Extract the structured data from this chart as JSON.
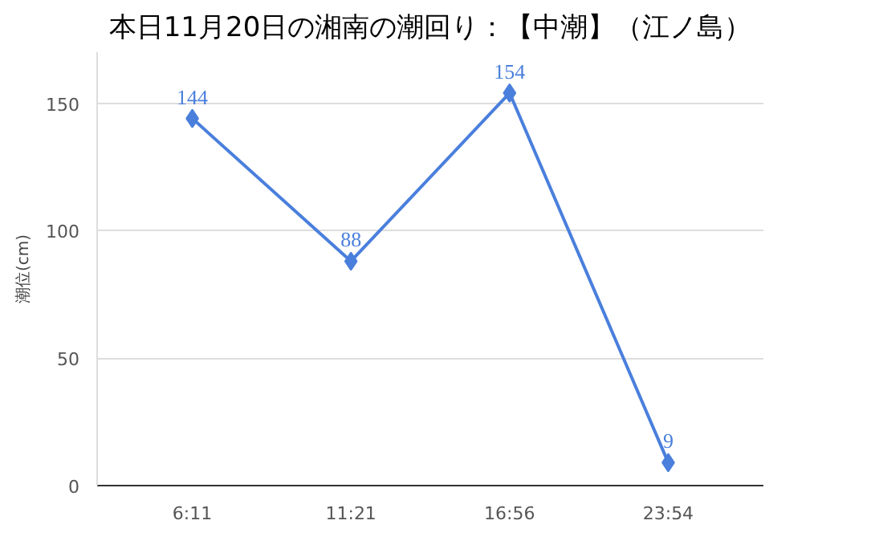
{
  "chart_data": {
    "type": "line",
    "title": "本日11月20日の湘南の潮回り：【中潮】（江ノ島）",
    "ylabel": "潮位(cm)",
    "categories": [
      "6:11",
      "11:21",
      "16:56",
      "23:54"
    ],
    "series": [
      {
        "color": "#4a7fdc",
        "values": [
          144,
          88,
          154,
          9
        ]
      }
    ],
    "ylim": [
      0,
      170
    ],
    "yticks": [
      0,
      50,
      100,
      150
    ],
    "grid": "y",
    "marker": "diamond",
    "line_style": "solid",
    "data_labels": true
  }
}
